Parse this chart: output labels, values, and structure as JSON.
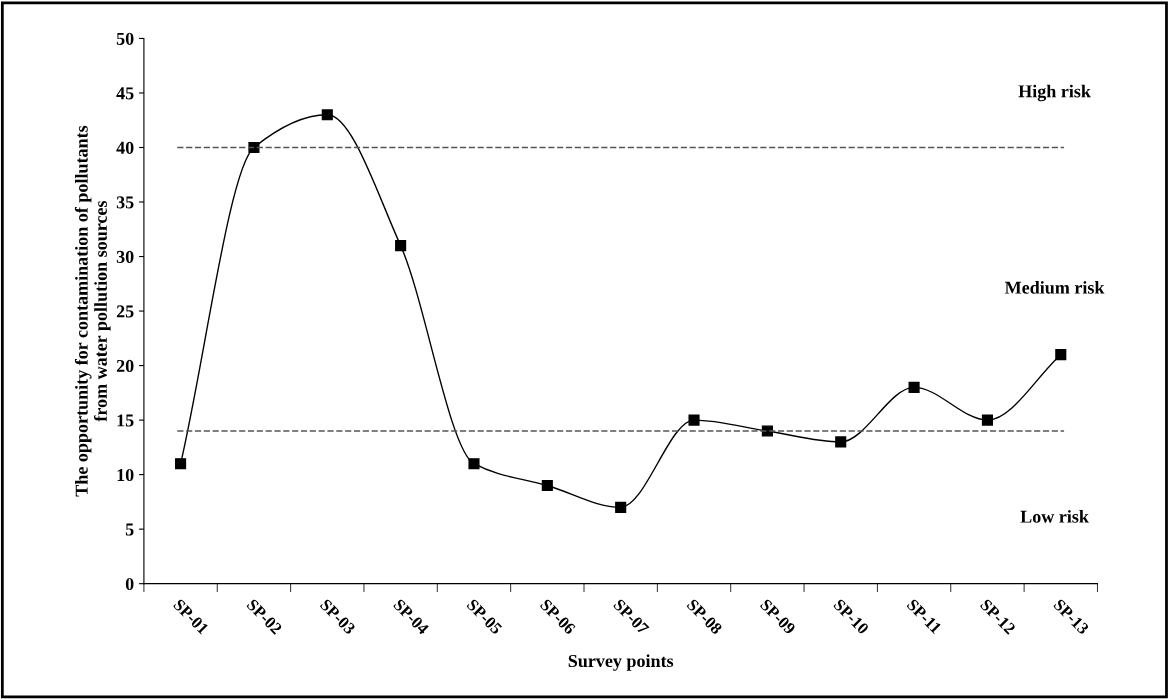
{
  "chart_data": {
    "type": "line",
    "xlabel": "Survey points",
    "ylabel": "The opportunity for contamination of pollutants\nfrom water pollution sources",
    "categories": [
      "SP-01",
      "SP-02",
      "SP-03",
      "SP-04",
      "SP-05",
      "SP-06",
      "SP-07",
      "SP-08",
      "SP-09",
      "SP-10",
      "SP-11",
      "SP-12",
      "SP-13"
    ],
    "series": [
      {
        "color": "#000000",
        "values": [
          11,
          40,
          43,
          31,
          11,
          9,
          7,
          15,
          14,
          13,
          18,
          15,
          21
        ]
      }
    ],
    "ylim": [
      0,
      50
    ],
    "yticks": [
      0,
      5,
      10,
      15,
      20,
      25,
      30,
      35,
      40,
      45,
      50
    ],
    "marker": "square",
    "line_style": "solid",
    "grid": false,
    "legend": false,
    "ref_lines": [
      {
        "axis": "y",
        "value": 40,
        "color": "#555555",
        "line_style": "dashed"
      },
      {
        "axis": "y",
        "value": 14,
        "color": "#555555",
        "line_style": "dashed"
      }
    ],
    "annotations": [
      "High risk",
      "Medium risk",
      "Low risk"
    ]
  }
}
